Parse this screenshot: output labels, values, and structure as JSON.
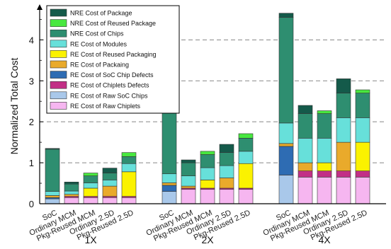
{
  "chart_data": {
    "type": "bar",
    "stacked": true,
    "ylabel": "Normalized Total Cost",
    "ylim": [
      0,
      4.8
    ],
    "yticks": [
      "0",
      "1",
      "2",
      "3",
      "4"
    ],
    "grid": "dashed horizontal",
    "legend_position": "top-left",
    "groups": [
      {
        "label": "1X",
        "categories": [
          "SoC",
          "Ordinary  MCM",
          "Pkg-Reused  MCM",
          "Ordinary 2.5D",
          "Pkg-Reused 2.5D"
        ]
      },
      {
        "label": "2X",
        "categories": [
          "SoC",
          "Ordinary  MCM",
          "Pkg-Reused  MCM",
          "Ordinary 2.5D",
          "Pkg-Reused 2.5D"
        ]
      },
      {
        "label": "4X",
        "categories": [
          "SoC",
          "Ordinary  MCM",
          "Pkg-Reused  MCM",
          "Ordinary 2.5D",
          "Pkg-Reused 2.5D"
        ]
      }
    ],
    "series": [
      {
        "name": "RE Cost of Raw Chiplets",
        "color": "#f6b6f0",
        "values": [
          [
            0,
            0.15,
            0.15,
            0.15,
            0.15
          ],
          [
            0,
            0.35,
            0.35,
            0.35,
            0.35
          ],
          [
            0,
            0.65,
            0.65,
            0.65,
            0.65
          ]
        ]
      },
      {
        "name": "RE Cost of Raw SoC Chips",
        "color": "#a9c8ea",
        "values": [
          [
            0.12,
            0,
            0,
            0,
            0
          ],
          [
            0.3,
            0,
            0,
            0,
            0
          ],
          [
            0.7,
            0,
            0,
            0,
            0
          ]
        ]
      },
      {
        "name": "RE Cost of Chiplets Defects",
        "color": "#c22f86",
        "values": [
          [
            0,
            0.03,
            0.03,
            0.03,
            0.03
          ],
          [
            0,
            0.03,
            0.03,
            0.03,
            0.03
          ],
          [
            0,
            0.15,
            0.15,
            0.15,
            0.15
          ]
        ]
      },
      {
        "name": "RE Cost of SoC Chip Defects",
        "color": "#2e6cb3",
        "values": [
          [
            0.03,
            0,
            0,
            0,
            0
          ],
          [
            0.15,
            0,
            0,
            0,
            0
          ],
          [
            0.7,
            0,
            0,
            0,
            0
          ]
        ]
      },
      {
        "name": "RE Cost of Packaing",
        "color": "#e9aa2b",
        "values": [
          [
            0.05,
            0.05,
            0,
            0.25,
            0
          ],
          [
            0.06,
            0.05,
            0,
            0.25,
            0
          ],
          [
            0.07,
            0.2,
            0,
            0.7,
            0
          ]
        ]
      },
      {
        "name": "RE Cost of Reused Packaging",
        "color": "#fbf200",
        "values": [
          [
            0,
            0,
            0.2,
            0,
            0.6
          ],
          [
            0,
            0,
            0.2,
            0,
            0.6
          ],
          [
            0,
            0,
            0.2,
            0,
            0.7
          ]
        ]
      },
      {
        "name": "RE Cost of Modules",
        "color": "#67e0da",
        "values": [
          [
            0.1,
            0.08,
            0.13,
            0.15,
            0.2
          ],
          [
            0.22,
            0.25,
            0.3,
            0.3,
            0.3
          ],
          [
            0.5,
            0.6,
            0.6,
            0.6,
            0.6
          ]
        ]
      },
      {
        "name": "NRE Cost of Chips",
        "color": "#2e8e70",
        "values": [
          [
            1.03,
            0.17,
            0.17,
            0.17,
            0.17
          ],
          [
            1.58,
            0.32,
            0.32,
            0.32,
            0.32
          ],
          [
            2.58,
            0.6,
            0.6,
            0.6,
            0.6
          ]
        ]
      },
      {
        "name": "NRE Cost of Reused Package",
        "color": "#48e83f",
        "values": [
          [
            0,
            0,
            0.07,
            0,
            0.1
          ],
          [
            0,
            0,
            0.08,
            0,
            0.11
          ],
          [
            0,
            0,
            0.07,
            0,
            0.08
          ]
        ]
      },
      {
        "name": "NRE Cost of Package",
        "color": "#145a4a",
        "values": [
          [
            0.02,
            0.05,
            0,
            0.12,
            0
          ],
          [
            0.02,
            0.07,
            0,
            0.2,
            0
          ],
          [
            0.1,
            0.2,
            0,
            0.35,
            0
          ]
        ]
      }
    ]
  }
}
